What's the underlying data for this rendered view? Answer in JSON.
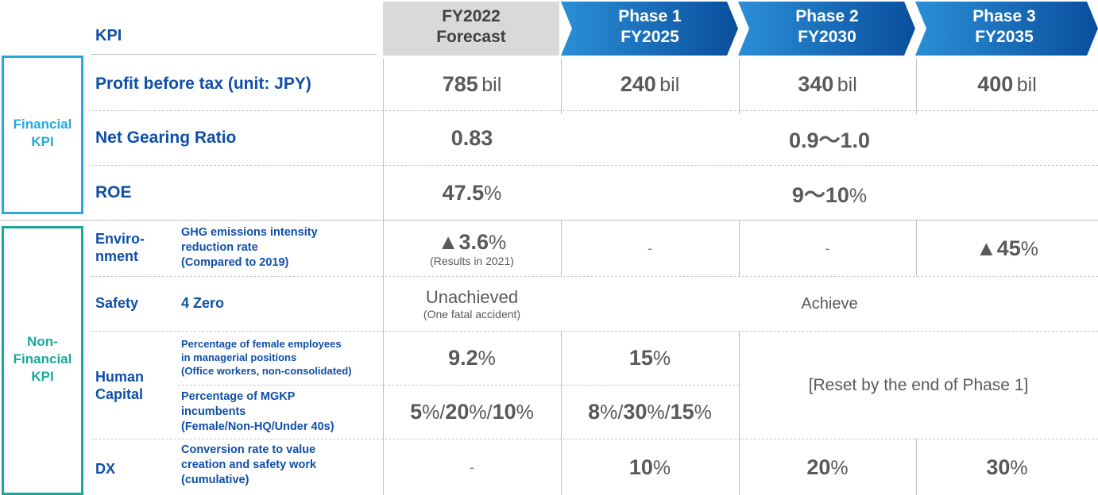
{
  "header": {
    "kpi": "KPI",
    "cols": [
      {
        "line1": "FY2022",
        "line2": "Forecast"
      },
      {
        "line1": "Phase 1",
        "line2": "FY2025"
      },
      {
        "line1": "Phase 2",
        "line2": "FY2030"
      },
      {
        "line1": "Phase 3",
        "line2": "FY2035"
      }
    ]
  },
  "groups": {
    "financial": {
      "line1": "Financial",
      "line2": "KPI"
    },
    "nonfinancial": {
      "line1": "Non-",
      "line2": "Financial",
      "line3": "KPI"
    }
  },
  "rows": {
    "profit": {
      "label": "Profit before tax (unit: JPY)",
      "fy2022": "785",
      "phase1": "240",
      "phase2": "340",
      "phase3": "400",
      "unit": "bil"
    },
    "gearing": {
      "label": "Net Gearing Ratio",
      "fy2022": "0.83",
      "future": "0.9～1.0"
    },
    "roe": {
      "label": "ROE",
      "fy2022": "47.5",
      "future": "9～10",
      "unit": "%"
    },
    "env": {
      "category_line1": "Enviro-",
      "category_line2": "nment",
      "line1": "GHG emissions intensity",
      "line2": "reduction rate",
      "line3": "(Compared to 2019)",
      "fy2022": "▲3.6",
      "fy2022_note": "(Results in 2021)",
      "phase1": "-",
      "phase2": "-",
      "phase3": "▲45",
      "unit": "%"
    },
    "safety": {
      "category": "Safety",
      "label": "4 Zero",
      "fy2022": "Unachieved",
      "fy2022_note": "(One fatal accident)",
      "future": "Achieve"
    },
    "human": {
      "category_line1": "Human",
      "category_line2": "Capital",
      "female": {
        "line1": "Percentage of female employees",
        "line2": "in managerial positions",
        "line3": "(Office workers, non-consolidated)",
        "fy2022": "9.2",
        "phase1": "15",
        "unit": "%"
      },
      "mgkp": {
        "line1": "Percentage of MGKP",
        "line2": "incumbents",
        "line3": "(Female/Non-HQ/Under 40s)",
        "fy2022": [
          "5",
          "20",
          "10"
        ],
        "phase1": [
          "8",
          "30",
          "15"
        ],
        "unit": "%",
        "sep": "/"
      },
      "reset": "[Reset by the end of Phase 1]"
    },
    "dx": {
      "category": "DX",
      "line1": "Conversion rate to value",
      "line2": "creation and safety work",
      "line3": "(cumulative)",
      "fy2022": "-",
      "phase1": "10",
      "phase2": "20",
      "phase3": "30",
      "unit": "%"
    }
  },
  "colors": {
    "brand_blue": "#0f4fa8",
    "financial_box": "#29a8e0",
    "nonfinancial_box": "#1aa89a",
    "forecast_header": "#d9d9d9",
    "phase_header": "#0b5cad",
    "value_text": "#595959"
  }
}
